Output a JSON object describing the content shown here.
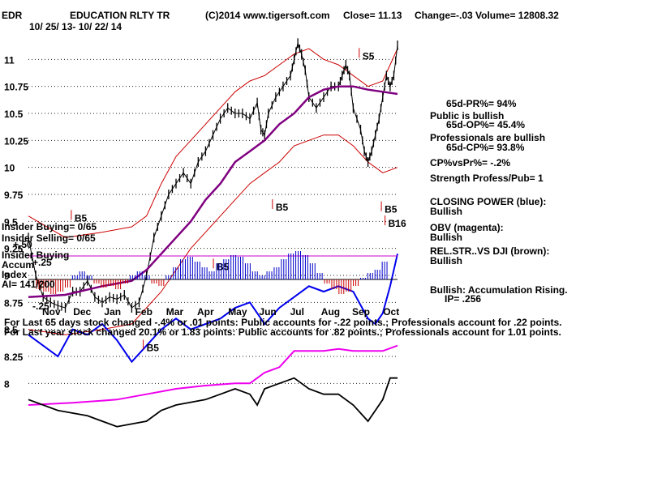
{
  "header": {
    "ticker": "EDR",
    "company": "EDUCATION RLTY TR",
    "copyright": "(C)2014 www.tigersoft.com",
    "close": "Close=  11.13",
    "change": "Change=-.03",
    "volume": "Volume= 12808.32",
    "date_range": "10/ 25/ 13- 10/ 22/ 14"
  },
  "right_panel": {
    "pr": "65d-PR%= 94%",
    "public_bullish": "Public is bullish",
    "op": "65d-OP%= 45.4%",
    "prof_bullish": "Professionals are bullish",
    "cp": "65d-CP%= 93.8%",
    "cpvspr": "CP%vsPr%= -.2%",
    "strength": "Strength Profess/Pub= 1",
    "closing_power_label": "CLOSING POWER (blue):",
    "closing_power_val": "Bullish",
    "obv_label": "OBV (magenta):",
    "obv_val": "Bullish",
    "relstr_label": "REL.STR..VS DJI (brown):",
    "relstr_val": "Bullish",
    "accum": "Bullish: Accumulation Rising.",
    "ip": "IP=  .256"
  },
  "lower_left": {
    "insider_buying": "Insider Buying= 0/65",
    "insider_selling": "Insider Selling= 0/65",
    "plus50": "+.50",
    "insider_buying2": "Insider Buying",
    "accum": "Accum",
    "plus25": "+.25",
    "index": "Index",
    "ai": "AI= 141/200",
    "minus25": "-.25"
  },
  "footer": {
    "line1": "For Last 65 days stock changed -.4% or  .01 points:  Public accounts for -.22 points.;  Professionals account for  .22 points.",
    "line2": "For Last year stock changed  20.1% or  1.83 points:  Public accounts for  .82 points.;  Professionals account for  1.01 points."
  },
  "chart_data": {
    "type": "line",
    "price_ylim": [
      8.0,
      11.25
    ],
    "price_ticks": [
      "11",
      "10.75",
      "10.5",
      "10.25",
      "10",
      "9.75",
      "9.5",
      "9.25",
      "9",
      "8.75",
      "8.5",
      "8.25",
      "8"
    ],
    "price_tick_values": [
      11,
      10.75,
      10.5,
      10.25,
      10,
      9.75,
      9.5,
      9.25,
      9,
      8.75,
      8.5,
      8.25,
      8
    ],
    "months": [
      "Nov",
      "Dec",
      "Jan",
      "Feb",
      "Mar",
      "Apr",
      "May",
      "Jun",
      "Jul",
      "Aug",
      "Sep",
      "Oct"
    ],
    "close_points": [
      [
        0,
        9.35
      ],
      [
        4,
        9.0
      ],
      [
        8,
        8.8
      ],
      [
        12,
        8.75
      ],
      [
        16,
        8.72
      ],
      [
        20,
        8.7
      ],
      [
        24,
        8.85
      ],
      [
        28,
        8.85
      ],
      [
        32,
        8.95
      ],
      [
        36,
        8.8
      ],
      [
        40,
        8.75
      ],
      [
        44,
        8.8
      ],
      [
        48,
        8.78
      ],
      [
        52,
        8.82
      ],
      [
        56,
        8.7
      ],
      [
        60,
        8.75
      ],
      [
        64,
        9.0
      ],
      [
        68,
        9.35
      ],
      [
        72,
        9.55
      ],
      [
        76,
        9.75
      ],
      [
        80,
        9.85
      ],
      [
        84,
        9.95
      ],
      [
        88,
        9.85
      ],
      [
        92,
        10.05
      ],
      [
        96,
        10.15
      ],
      [
        100,
        10.3
      ],
      [
        104,
        10.45
      ],
      [
        108,
        10.55
      ],
      [
        112,
        10.5
      ],
      [
        116,
        10.5
      ],
      [
        120,
        10.45
      ],
      [
        124,
        10.6
      ],
      [
        126,
        10.35
      ],
      [
        128,
        10.3
      ],
      [
        130,
        10.5
      ],
      [
        134,
        10.65
      ],
      [
        138,
        10.75
      ],
      [
        142,
        10.85
      ],
      [
        144,
        11.0
      ],
      [
        146,
        11.15
      ],
      [
        148,
        11.05
      ],
      [
        150,
        10.9
      ],
      [
        152,
        10.65
      ],
      [
        156,
        10.55
      ],
      [
        160,
        10.65
      ],
      [
        164,
        10.75
      ],
      [
        168,
        10.75
      ],
      [
        170,
        10.85
      ],
      [
        172,
        10.95
      ],
      [
        174,
        10.85
      ],
      [
        176,
        10.55
      ],
      [
        180,
        10.35
      ],
      [
        182,
        10.15
      ],
      [
        184,
        10.05
      ],
      [
        186,
        10.15
      ],
      [
        188,
        10.3
      ],
      [
        190,
        10.45
      ],
      [
        192,
        10.65
      ],
      [
        194,
        10.85
      ],
      [
        196,
        10.75
      ],
      [
        198,
        10.85
      ],
      [
        200,
        11.13
      ]
    ],
    "ma_points": [
      [
        0,
        8.8
      ],
      [
        20,
        8.82
      ],
      [
        40,
        8.9
      ],
      [
        56,
        8.95
      ],
      [
        64,
        9.05
      ],
      [
        72,
        9.2
      ],
      [
        80,
        9.35
      ],
      [
        88,
        9.5
      ],
      [
        96,
        9.7
      ],
      [
        104,
        9.85
      ],
      [
        112,
        10.05
      ],
      [
        120,
        10.15
      ],
      [
        128,
        10.25
      ],
      [
        136,
        10.4
      ],
      [
        144,
        10.5
      ],
      [
        152,
        10.65
      ],
      [
        160,
        10.72
      ],
      [
        168,
        10.75
      ],
      [
        176,
        10.75
      ],
      [
        184,
        10.72
      ],
      [
        192,
        10.7
      ],
      [
        200,
        10.68
      ]
    ],
    "upper_band": [
      [
        0,
        9.55
      ],
      [
        20,
        9.35
      ],
      [
        40,
        9.4
      ],
      [
        56,
        9.45
      ],
      [
        64,
        9.55
      ],
      [
        72,
        9.85
      ],
      [
        80,
        10.1
      ],
      [
        88,
        10.25
      ],
      [
        96,
        10.4
      ],
      [
        104,
        10.55
      ],
      [
        112,
        10.7
      ],
      [
        120,
        10.8
      ],
      [
        128,
        10.85
      ],
      [
        136,
        10.95
      ],
      [
        144,
        11.05
      ],
      [
        152,
        11.1
      ],
      [
        160,
        11.0
      ],
      [
        168,
        10.95
      ],
      [
        176,
        10.85
      ],
      [
        184,
        10.75
      ],
      [
        192,
        10.8
      ],
      [
        200,
        11.1
      ]
    ],
    "lower_band": [
      [
        0,
        8.5
      ],
      [
        20,
        8.45
      ],
      [
        40,
        8.5
      ],
      [
        56,
        8.55
      ],
      [
        64,
        8.7
      ],
      [
        72,
        8.85
      ],
      [
        80,
        9.05
      ],
      [
        88,
        9.25
      ],
      [
        96,
        9.4
      ],
      [
        104,
        9.55
      ],
      [
        112,
        9.7
      ],
      [
        120,
        9.85
      ],
      [
        128,
        9.95
      ],
      [
        136,
        10.05
      ],
      [
        144,
        10.2
      ],
      [
        152,
        10.25
      ],
      [
        160,
        10.3
      ],
      [
        168,
        10.3
      ],
      [
        176,
        10.2
      ],
      [
        184,
        10.05
      ],
      [
        192,
        9.95
      ],
      [
        200,
        10.0
      ]
    ],
    "closing_power_points": [
      [
        0,
        8.45
      ],
      [
        8,
        8.35
      ],
      [
        16,
        8.25
      ],
      [
        24,
        8.5
      ],
      [
        32,
        8.45
      ],
      [
        40,
        8.55
      ],
      [
        48,
        8.4
      ],
      [
        56,
        8.2
      ],
      [
        64,
        8.35
      ],
      [
        72,
        8.5
      ],
      [
        80,
        8.6
      ],
      [
        88,
        8.5
      ],
      [
        96,
        8.55
      ],
      [
        104,
        8.6
      ],
      [
        112,
        8.7
      ],
      [
        120,
        8.75
      ],
      [
        128,
        8.55
      ],
      [
        136,
        8.7
      ],
      [
        144,
        8.8
      ],
      [
        152,
        8.9
      ],
      [
        160,
        8.85
      ],
      [
        168,
        8.9
      ],
      [
        176,
        8.85
      ],
      [
        184,
        8.6
      ],
      [
        188,
        8.55
      ],
      [
        192,
        8.65
      ],
      [
        196,
        8.9
      ],
      [
        200,
        9.2
      ]
    ],
    "obv_points": [
      [
        0,
        7.8
      ],
      [
        24,
        7.82
      ],
      [
        48,
        7.85
      ],
      [
        64,
        7.9
      ],
      [
        80,
        7.95
      ],
      [
        96,
        7.98
      ],
      [
        112,
        8.0
      ],
      [
        120,
        8.0
      ],
      [
        124,
        8.05
      ],
      [
        128,
        8.1
      ],
      [
        136,
        8.15
      ],
      [
        144,
        8.3
      ],
      [
        152,
        8.3
      ],
      [
        160,
        8.3
      ],
      [
        168,
        8.32
      ],
      [
        176,
        8.3
      ],
      [
        184,
        8.3
      ],
      [
        192,
        8.3
      ],
      [
        200,
        8.35
      ]
    ],
    "rel_str_points": [
      [
        0,
        7.85
      ],
      [
        16,
        7.75
      ],
      [
        32,
        7.7
      ],
      [
        48,
        7.6
      ],
      [
        64,
        7.65
      ],
      [
        72,
        7.75
      ],
      [
        80,
        7.8
      ],
      [
        96,
        7.85
      ],
      [
        104,
        7.9
      ],
      [
        112,
        7.95
      ],
      [
        120,
        7.9
      ],
      [
        124,
        7.8
      ],
      [
        128,
        7.95
      ],
      [
        136,
        8.0
      ],
      [
        144,
        8.05
      ],
      [
        152,
        7.95
      ],
      [
        160,
        7.9
      ],
      [
        168,
        7.9
      ],
      [
        176,
        7.8
      ],
      [
        184,
        7.65
      ],
      [
        188,
        7.75
      ],
      [
        192,
        7.85
      ],
      [
        196,
        8.05
      ],
      [
        200,
        8.05
      ]
    ],
    "accumulation_index": [
      -0.12,
      -0.15,
      -0.18,
      -0.15,
      -0.1,
      0.05,
      0.1,
      0.05,
      -0.05,
      -0.1,
      -0.08,
      -0.12,
      -0.05,
      0.05,
      0.1,
      0.05,
      -0.05,
      -0.08,
      0.05,
      0.15,
      0.25,
      0.28,
      0.22,
      0.15,
      0.1,
      0.2,
      0.25,
      0.3,
      0.28,
      0.2,
      0.1,
      0.05,
      0.1,
      0.15,
      0.25,
      0.32,
      0.35,
      0.3,
      0.2,
      0.08,
      -0.05,
      -0.12,
      -0.18,
      -0.15,
      -0.08,
      0.02,
      0.08,
      0.12,
      0.22
    ],
    "signal_labels": [
      {
        "text": "B5",
        "x": 25,
        "y": 9.5
      },
      {
        "text": "B5",
        "x": 64,
        "y": 8.3
      },
      {
        "text": "B5",
        "x": 102,
        "y": 9.05
      },
      {
        "text": "B5",
        "x": 134,
        "y": 9.6
      },
      {
        "text": "S5",
        "x": 181,
        "y": 11.0
      },
      {
        "text": "B5",
        "x": 193,
        "y": 9.58
      },
      {
        "text": "B16",
        "x": 195,
        "y": 9.45
      }
    ]
  }
}
